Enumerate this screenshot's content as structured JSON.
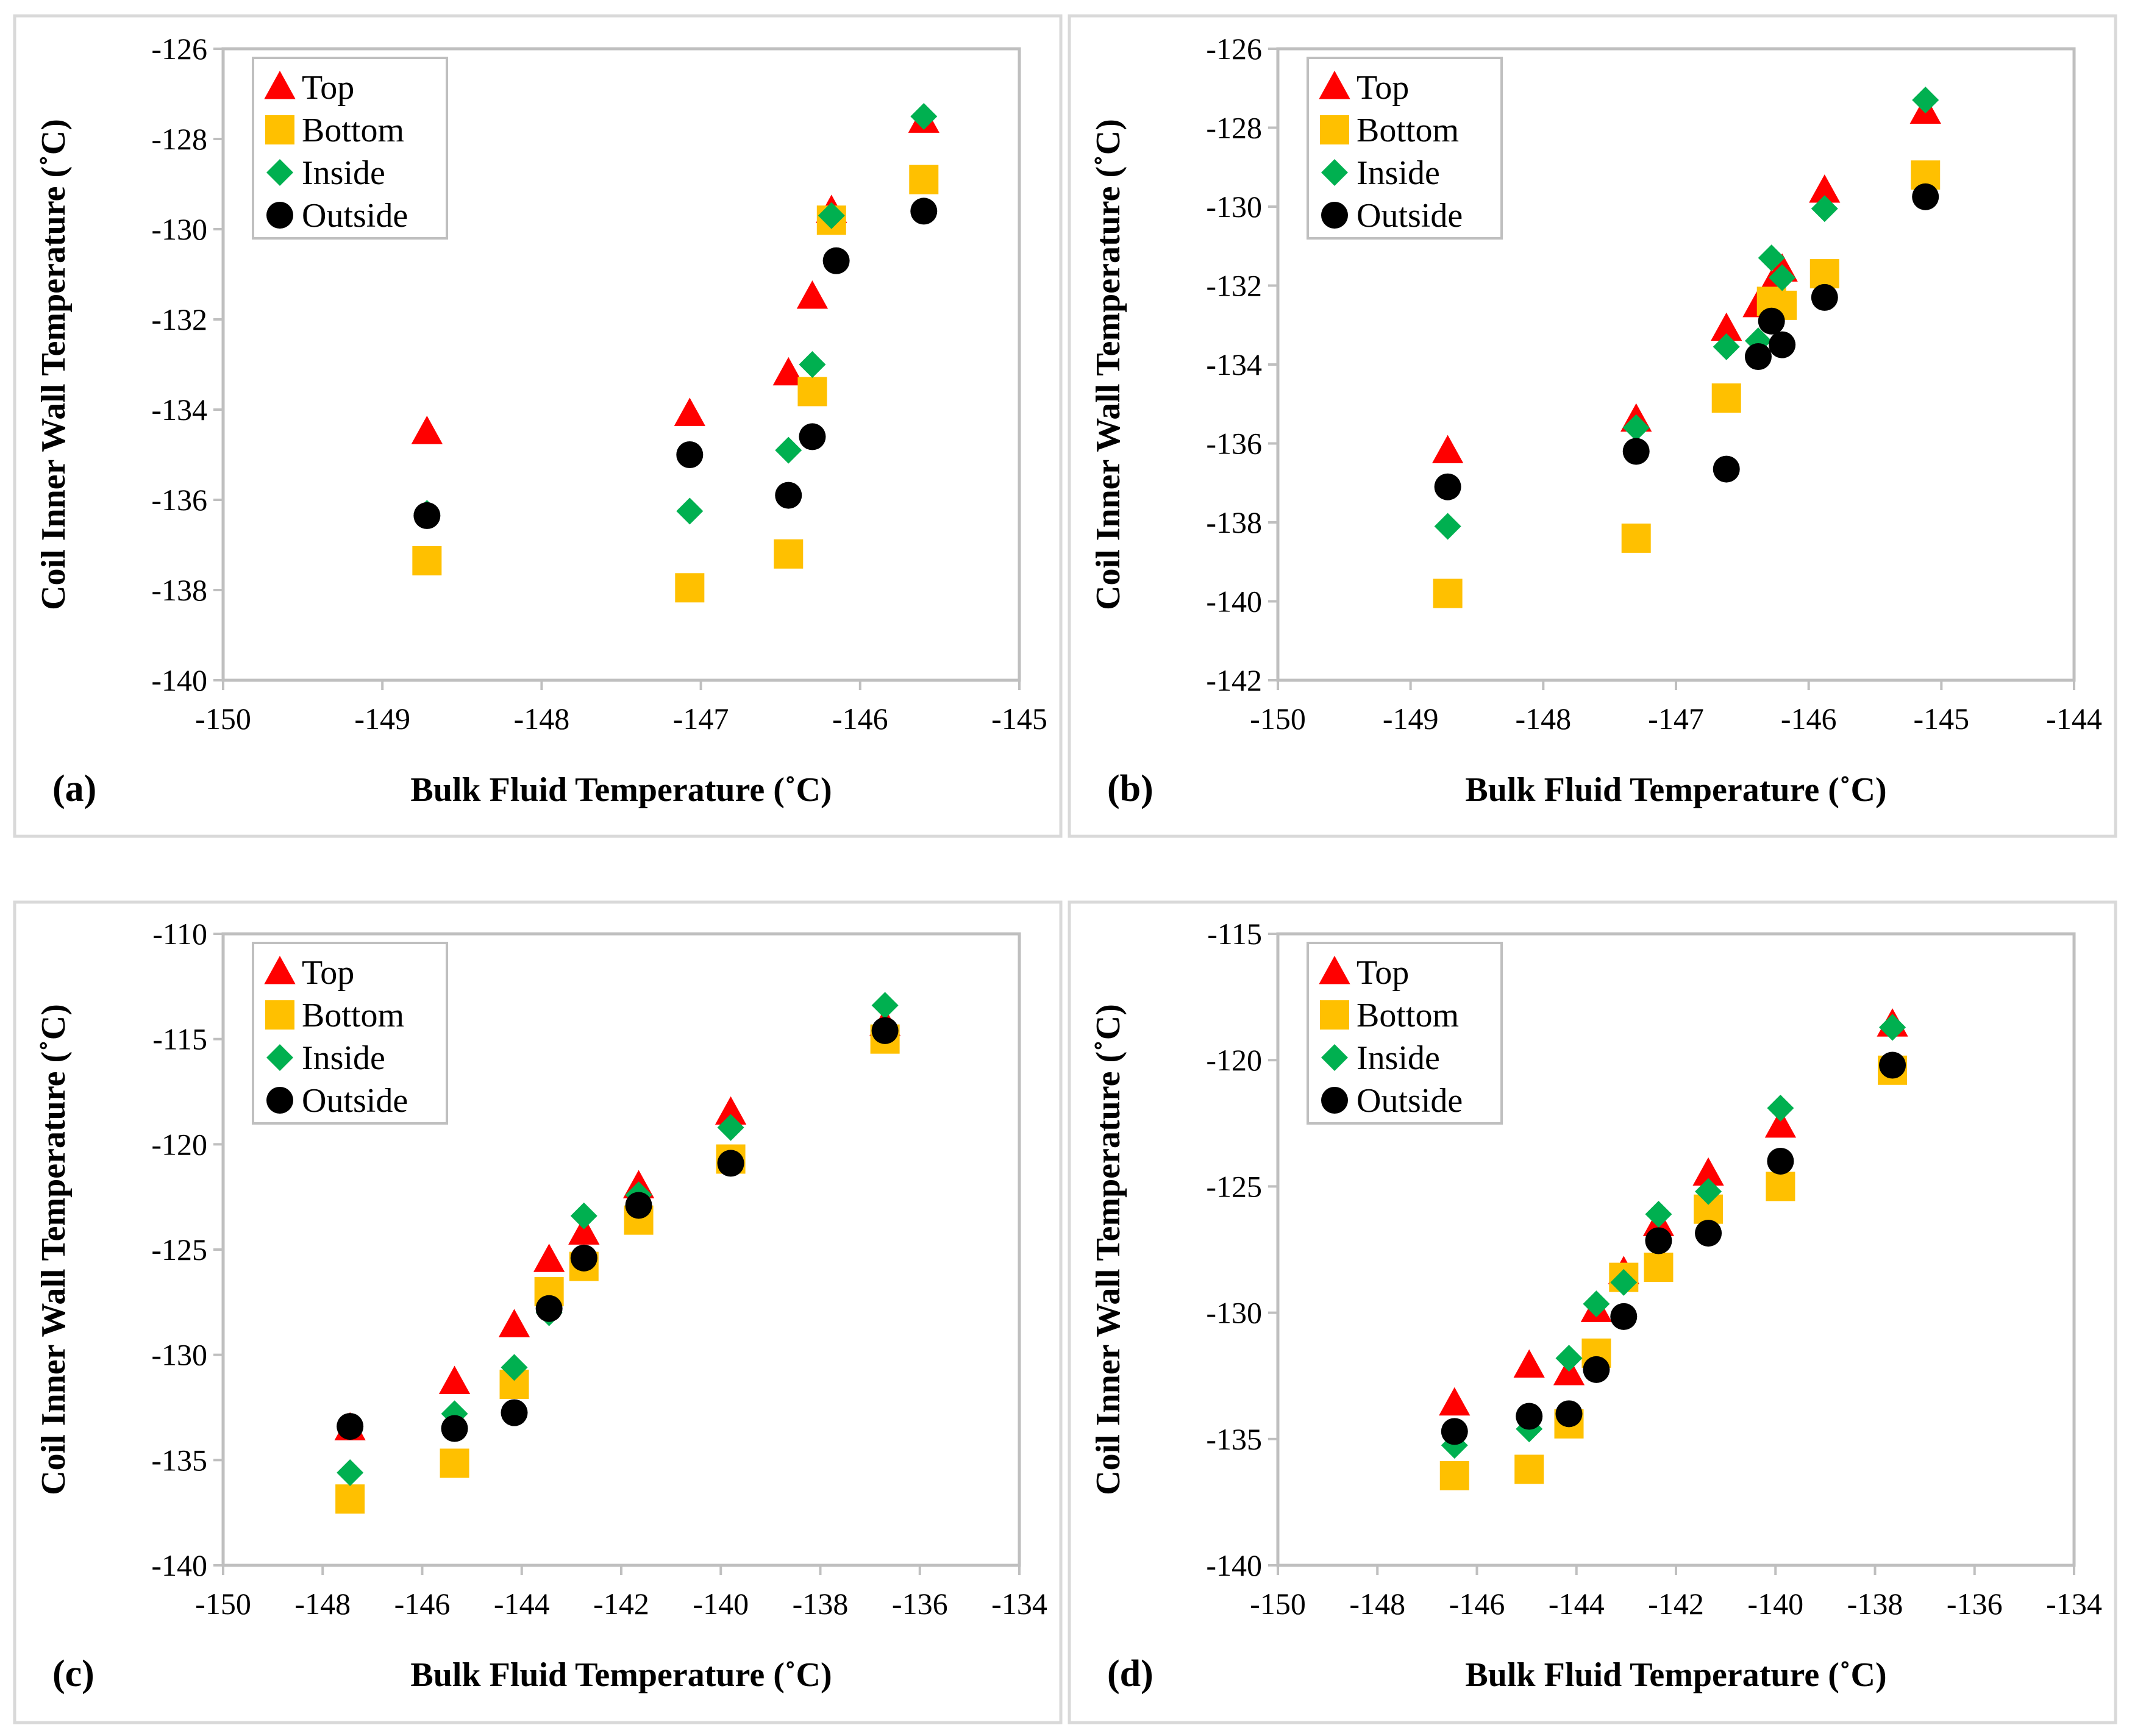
{
  "figure": {
    "panels_order": [
      "a",
      "b",
      "c",
      "d"
    ]
  },
  "colors": {
    "top": "#ff0000",
    "bottom": "#ffc000",
    "inside": "#00b050",
    "outside": "#000000",
    "frame": "#d9d9d9",
    "axis": "#bfbfbf"
  },
  "legend": {
    "top": "Top",
    "bottom": "Bottom",
    "inside": "Inside",
    "outside": "Outside"
  },
  "chart_data": [
    {
      "panel": "(a)",
      "type": "scatter",
      "xlabel": "Bulk Fluid Temperature (˚C)",
      "ylabel": "Coil Inner Wall Temperature (˚C)",
      "xlim": [
        -150,
        -145
      ],
      "ylim": [
        -140,
        -126
      ],
      "xticks": [
        -150,
        -149,
        -148,
        -147,
        -146,
        -145
      ],
      "yticks": [
        -140,
        -138,
        -136,
        -134,
        -132,
        -130,
        -128,
        -126
      ],
      "series": [
        {
          "name": "Top",
          "key": "top",
          "marker": "triangle",
          "points": [
            [
              -148.72,
              -134.5
            ],
            [
              -147.07,
              -134.1
            ],
            [
              -146.45,
              -133.2
            ],
            [
              -146.3,
              -131.5
            ],
            [
              -146.18,
              -129.6
            ],
            [
              -145.6,
              -127.6
            ]
          ]
        },
        {
          "name": "Bottom",
          "key": "bottom",
          "marker": "square",
          "points": [
            [
              -148.72,
              -137.35
            ],
            [
              -147.07,
              -137.95
            ],
            [
              -146.45,
              -137.2
            ],
            [
              -146.3,
              -133.6
            ],
            [
              -146.18,
              -129.8
            ],
            [
              -145.6,
              -128.9
            ]
          ]
        },
        {
          "name": "Inside",
          "key": "inside",
          "marker": "diamond",
          "points": [
            [
              -148.72,
              -136.3
            ],
            [
              -147.07,
              -136.25
            ],
            [
              -146.45,
              -134.9
            ],
            [
              -146.3,
              -133.0
            ],
            [
              -146.18,
              -129.7
            ],
            [
              -145.6,
              -127.5
            ]
          ]
        },
        {
          "name": "Outside",
          "key": "outside",
          "marker": "circle",
          "points": [
            [
              -148.72,
              -136.35
            ],
            [
              -147.07,
              -135.0
            ],
            [
              -146.45,
              -135.9
            ],
            [
              -146.3,
              -134.6
            ],
            [
              -146.15,
              -130.7
            ],
            [
              -145.6,
              -129.6
            ]
          ]
        }
      ]
    },
    {
      "panel": "(b)",
      "type": "scatter",
      "xlabel": "Bulk Fluid Temperature (˚C)",
      "ylabel": "Coil Inner Wall Temperature (˚C)",
      "xlim": [
        -150,
        -144
      ],
      "ylim": [
        -142,
        -126
      ],
      "xticks": [
        -150,
        -149,
        -148,
        -147,
        -146,
        -145,
        -144
      ],
      "yticks": [
        -142,
        -140,
        -138,
        -136,
        -134,
        -132,
        -130,
        -128,
        -126
      ],
      "series": [
        {
          "name": "Top",
          "key": "top",
          "marker": "triangle",
          "points": [
            [
              -148.72,
              -136.2
            ],
            [
              -147.3,
              -135.4
            ],
            [
              -146.62,
              -133.1
            ],
            [
              -146.38,
              -132.5
            ],
            [
              -146.28,
              -132.0
            ],
            [
              -146.2,
              -131.6
            ],
            [
              -145.88,
              -129.6
            ],
            [
              -145.12,
              -127.6
            ]
          ]
        },
        {
          "name": "Bottom",
          "key": "bottom",
          "marker": "square",
          "points": [
            [
              -148.72,
              -139.8
            ],
            [
              -147.3,
              -138.4
            ],
            [
              -146.62,
              -134.85
            ],
            [
              -146.28,
              -132.4
            ],
            [
              -146.2,
              -132.5
            ],
            [
              -145.88,
              -131.7
            ],
            [
              -145.12,
              -129.2
            ]
          ]
        },
        {
          "name": "Inside",
          "key": "inside",
          "marker": "diamond",
          "points": [
            [
              -148.72,
              -138.1
            ],
            [
              -147.3,
              -135.6
            ],
            [
              -146.62,
              -133.55
            ],
            [
              -146.38,
              -133.4
            ],
            [
              -146.28,
              -131.3
            ],
            [
              -146.2,
              -131.8
            ],
            [
              -145.88,
              -130.05
            ],
            [
              -145.12,
              -127.3
            ]
          ]
        },
        {
          "name": "Outside",
          "key": "outside",
          "marker": "circle",
          "points": [
            [
              -148.72,
              -137.1
            ],
            [
              -147.3,
              -136.2
            ],
            [
              -146.62,
              -136.65
            ],
            [
              -146.38,
              -133.8
            ],
            [
              -146.28,
              -132.9
            ],
            [
              -146.2,
              -133.5
            ],
            [
              -145.88,
              -132.3
            ],
            [
              -145.12,
              -129.75
            ]
          ]
        }
      ]
    },
    {
      "panel": "(c)",
      "type": "scatter",
      "xlabel": "Bulk Fluid Temperature (˚C)",
      "ylabel": "Coil Inner Wall Temperature (˚C)",
      "xlim": [
        -150,
        -134
      ],
      "ylim": [
        -140,
        -110
      ],
      "xticks": [
        -150,
        -148,
        -146,
        -144,
        -142,
        -140,
        -138,
        -136,
        -134
      ],
      "yticks": [
        -140,
        -135,
        -130,
        -125,
        -120,
        -115,
        -110
      ],
      "series": [
        {
          "name": "Top",
          "key": "top",
          "marker": "triangle",
          "points": [
            [
              -147.45,
              -133.5
            ],
            [
              -145.35,
              -131.3
            ],
            [
              -144.15,
              -128.6
            ],
            [
              -143.45,
              -125.5
            ],
            [
              -142.75,
              -124.2
            ],
            [
              -141.65,
              -122.0
            ],
            [
              -139.8,
              -118.5
            ],
            [
              -136.7,
              -114.3
            ]
          ]
        },
        {
          "name": "Bottom",
          "key": "bottom",
          "marker": "square",
          "points": [
            [
              -147.45,
              -136.85
            ],
            [
              -145.35,
              -135.15
            ],
            [
              -144.15,
              -131.4
            ],
            [
              -143.45,
              -127.0
            ],
            [
              -142.75,
              -125.8
            ],
            [
              -141.65,
              -123.6
            ],
            [
              -139.8,
              -120.7
            ],
            [
              -136.7,
              -115.0
            ]
          ]
        },
        {
          "name": "Inside",
          "key": "inside",
          "marker": "diamond",
          "points": [
            [
              -147.45,
              -135.6
            ],
            [
              -145.35,
              -132.8
            ],
            [
              -144.15,
              -130.6
            ],
            [
              -143.45,
              -128.0
            ],
            [
              -142.75,
              -123.4
            ],
            [
              -141.65,
              -122.4
            ],
            [
              -139.8,
              -119.2
            ],
            [
              -136.7,
              -113.4
            ]
          ]
        },
        {
          "name": "Outside",
          "key": "outside",
          "marker": "circle",
          "points": [
            [
              -147.45,
              -133.4
            ],
            [
              -145.35,
              -133.5
            ],
            [
              -144.15,
              -132.75
            ],
            [
              -143.45,
              -127.8
            ],
            [
              -142.75,
              -125.4
            ],
            [
              -141.65,
              -122.9
            ],
            [
              -139.8,
              -120.9
            ],
            [
              -136.7,
              -114.6
            ]
          ]
        }
      ]
    },
    {
      "panel": "(d)",
      "type": "scatter",
      "xlabel": "Bulk Fluid Temperature (˚C)",
      "ylabel": "Coil Inner Wall Temperature (˚C)",
      "xlim": [
        -150,
        -134
      ],
      "ylim": [
        -140,
        -115
      ],
      "xticks": [
        -150,
        -148,
        -146,
        -144,
        -142,
        -140,
        -138,
        -136,
        -134
      ],
      "yticks": [
        -140,
        -135,
        -130,
        -125,
        -120,
        -115
      ],
      "series": [
        {
          "name": "Top",
          "key": "top",
          "marker": "triangle",
          "points": [
            [
              -146.45,
              -133.6
            ],
            [
              -144.95,
              -132.1
            ],
            [
              -144.15,
              -132.4
            ],
            [
              -143.6,
              -129.9
            ],
            [
              -143.05,
              -128.4
            ],
            [
              -142.35,
              -126.5
            ],
            [
              -141.35,
              -124.5
            ],
            [
              -139.9,
              -122.6
            ],
            [
              -137.65,
              -118.6
            ]
          ]
        },
        {
          "name": "Bottom",
          "key": "bottom",
          "marker": "square",
          "points": [
            [
              -146.45,
              -136.45
            ],
            [
              -144.95,
              -136.2
            ],
            [
              -144.15,
              -134.4
            ],
            [
              -143.6,
              -131.6
            ],
            [
              -143.05,
              -128.6
            ],
            [
              -142.35,
              -128.2
            ],
            [
              -141.35,
              -125.9
            ],
            [
              -139.9,
              -125.0
            ],
            [
              -137.65,
              -120.4
            ]
          ]
        },
        {
          "name": "Inside",
          "key": "inside",
          "marker": "diamond",
          "points": [
            [
              -146.45,
              -135.25
            ],
            [
              -144.95,
              -134.6
            ],
            [
              -144.15,
              -131.8
            ],
            [
              -143.6,
              -129.65
            ],
            [
              -143.05,
              -128.8
            ],
            [
              -142.35,
              -126.1
            ],
            [
              -141.35,
              -125.2
            ],
            [
              -139.9,
              -121.9
            ],
            [
              -137.65,
              -118.7
            ]
          ]
        },
        {
          "name": "Outside",
          "key": "outside",
          "marker": "circle",
          "points": [
            [
              -146.45,
              -134.7
            ],
            [
              -144.95,
              -134.1
            ],
            [
              -144.15,
              -134.0
            ],
            [
              -143.6,
              -132.25
            ],
            [
              -143.05,
              -130.15
            ],
            [
              -142.35,
              -127.15
            ],
            [
              -141.35,
              -126.85
            ],
            [
              -139.9,
              -124.0
            ],
            [
              -137.65,
              -120.2
            ]
          ]
        }
      ]
    }
  ]
}
